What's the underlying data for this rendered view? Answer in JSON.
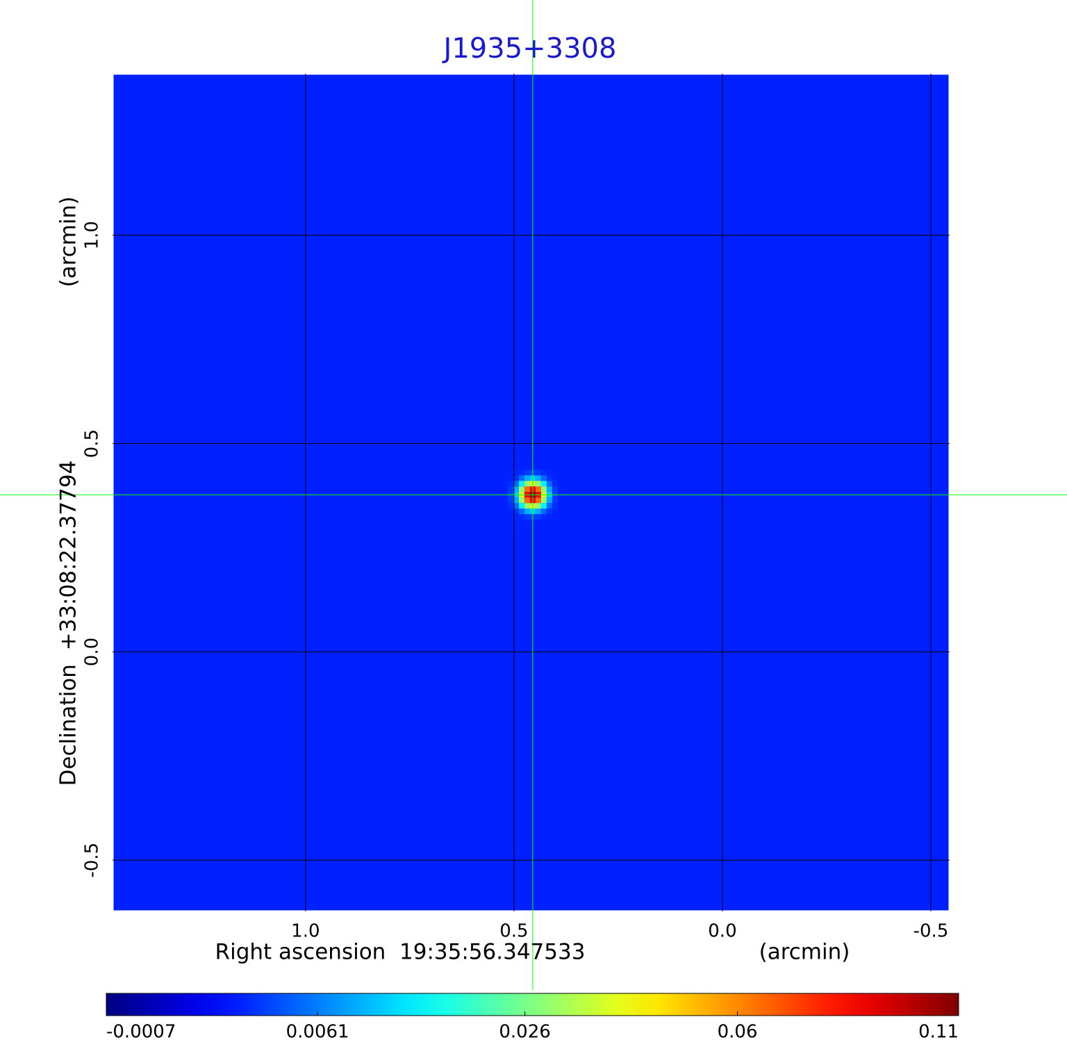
{
  "chart_data": {
    "type": "image",
    "title": "J1935+3308",
    "xlabel": "Right ascension  19:35:56.347533",
    "xunit": "(arcmin)",
    "ylabel": "Declination  +33:08:22.37794",
    "yunit": "(arcmin)",
    "xlim": [
      1.463,
      -0.545
    ],
    "ylim": [
      -0.623,
      1.388
    ],
    "xticks": [
      {
        "value": 1,
        "label": "1.0"
      },
      0.5,
      {
        "value": 0,
        "label": "0.0"
      },
      -0.5
    ],
    "yticks": [
      -0.5,
      {
        "value": 0,
        "label": "0.0"
      },
      0.5,
      {
        "value": 1,
        "label": "1.0"
      }
    ],
    "grid": true,
    "grid_color": "#000000",
    "crosshair": {
      "x": 0.455,
      "y": 0.377,
      "color": "#00ff00"
    },
    "background": 0.002,
    "source": {
      "x": 0.455,
      "y": 0.377,
      "peak": 0.11,
      "sigma": 0.018
    },
    "colorbar": {
      "colormap": "jet",
      "scale": "sqrt",
      "clim": [
        -0.0007,
        0.11
      ],
      "ticks": [
        -0.0007,
        0.0061,
        0.026,
        0.06,
        0.11
      ]
    }
  }
}
